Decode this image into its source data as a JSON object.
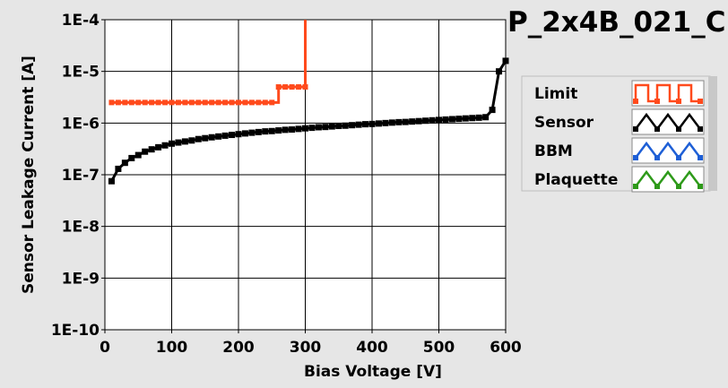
{
  "chart_data": {
    "type": "line",
    "title": "P_2x4B_021_C",
    "xlabel": "Bias Voltage [V]",
    "ylabel": "Sensor Leakage Current [A]",
    "xlim": [
      0,
      600
    ],
    "ylim": [
      1e-10,
      0.0001
    ],
    "yscale": "log",
    "grid": true,
    "legend_position": "right",
    "x_ticks": [
      0,
      100,
      200,
      300,
      400,
      500,
      600
    ],
    "x_tick_labels": [
      "0",
      "100",
      "200",
      "300",
      "400",
      "500",
      "600"
    ],
    "y_ticks": [
      0.0001,
      1e-05,
      1e-06,
      1e-07,
      1e-08,
      1e-09,
      1e-10
    ],
    "y_tick_labels": [
      "1E-4",
      "1E-5",
      "1E-6",
      "1E-7",
      "1E-8",
      "1E-9",
      "1E-10"
    ],
    "series": [
      {
        "name": "Limit",
        "color": "#ff4a1c",
        "marker": "square",
        "x": [
          10,
          20,
          30,
          40,
          50,
          60,
          70,
          80,
          90,
          100,
          110,
          120,
          130,
          140,
          150,
          160,
          170,
          180,
          190,
          200,
          210,
          220,
          230,
          240,
          250,
          260,
          270,
          280,
          290,
          300
        ],
        "y": [
          2.5e-06,
          2.5e-06,
          2.5e-06,
          2.5e-06,
          2.5e-06,
          2.5e-06,
          2.5e-06,
          2.5e-06,
          2.5e-06,
          2.5e-06,
          2.5e-06,
          2.5e-06,
          2.5e-06,
          2.5e-06,
          2.5e-06,
          2.5e-06,
          2.5e-06,
          2.5e-06,
          2.5e-06,
          2.5e-06,
          2.5e-06,
          2.5e-06,
          2.5e-06,
          2.5e-06,
          2.5e-06,
          5e-06,
          5e-06,
          5e-06,
          5e-06,
          5e-06
        ],
        "step_end": {
          "x": 300,
          "y": 0.0001
        }
      },
      {
        "name": "Sensor",
        "color": "#000000",
        "marker": "square",
        "x": [
          10,
          20,
          30,
          40,
          50,
          60,
          70,
          80,
          90,
          100,
          110,
          120,
          130,
          140,
          150,
          160,
          170,
          180,
          190,
          200,
          210,
          220,
          230,
          240,
          250,
          260,
          270,
          280,
          290,
          300,
          310,
          320,
          330,
          340,
          350,
          360,
          370,
          380,
          390,
          400,
          410,
          420,
          430,
          440,
          450,
          460,
          470,
          480,
          490,
          500,
          510,
          520,
          530,
          540,
          550,
          560,
          570,
          580,
          590,
          600
        ],
        "y": [
          7.5e-08,
          1.3e-07,
          1.7e-07,
          2.1e-07,
          2.4e-07,
          2.8e-07,
          3.1e-07,
          3.4e-07,
          3.7e-07,
          4e-07,
          4.2e-07,
          4.4e-07,
          4.6e-07,
          4.9e-07,
          5.1e-07,
          5.3e-07,
          5.5e-07,
          5.7e-07,
          5.9e-07,
          6.1e-07,
          6.3e-07,
          6.5e-07,
          6.7e-07,
          6.9e-07,
          7e-07,
          7.2e-07,
          7.4e-07,
          7.5e-07,
          7.7e-07,
          7.9e-07,
          8.1e-07,
          8.3e-07,
          8.4e-07,
          8.6e-07,
          8.8e-07,
          8.9e-07,
          9.1e-07,
          9.3e-07,
          9.5e-07,
          9.6e-07,
          9.8e-07,
          1e-06,
          1.02e-06,
          1.04e-06,
          1.05e-06,
          1.07e-06,
          1.09e-06,
          1.11e-06,
          1.13e-06,
          1.15e-06,
          1.17e-06,
          1.19e-06,
          1.21e-06,
          1.23e-06,
          1.25e-06,
          1.27e-06,
          1.3e-06,
          1.8e-06,
          1e-05,
          1.6e-05
        ]
      },
      {
        "name": "BBM",
        "color": "#1e5fd6",
        "x": [],
        "y": []
      },
      {
        "name": "Plaquette",
        "color": "#2e9a1a",
        "x": [],
        "y": []
      }
    ]
  }
}
